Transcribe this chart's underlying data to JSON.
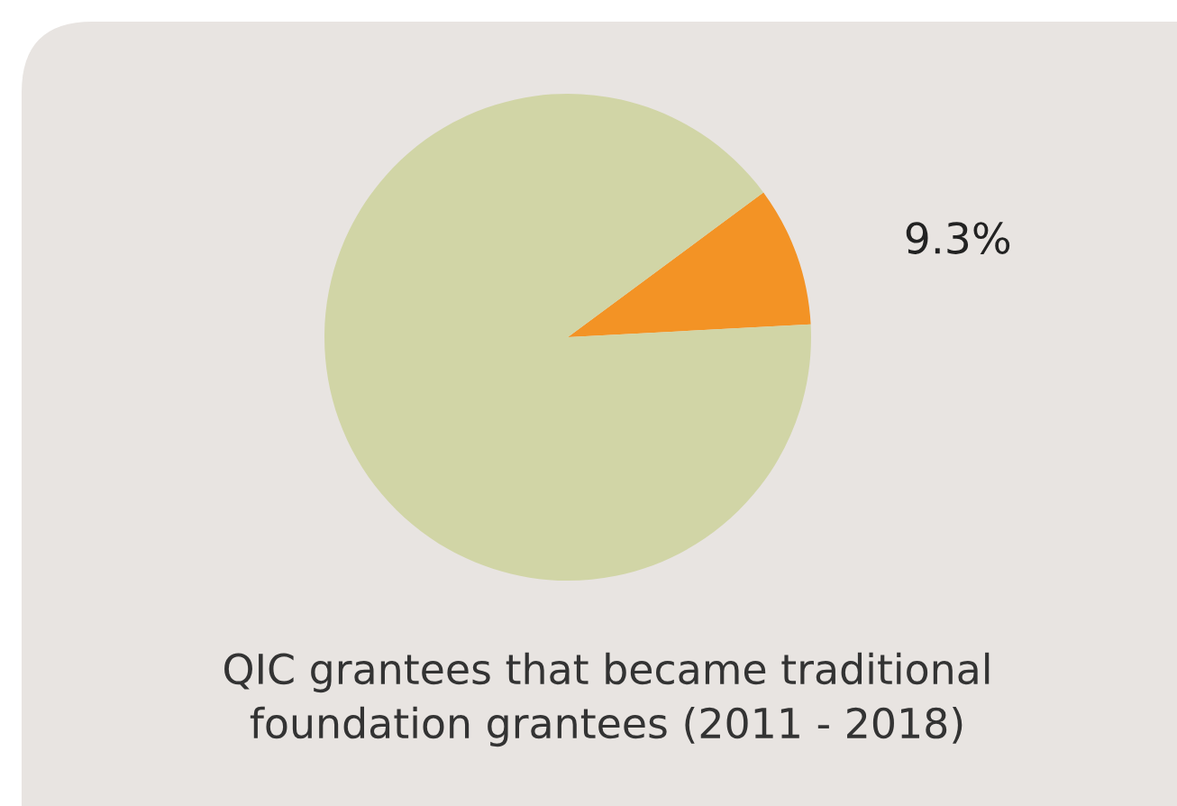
{
  "chart_data": {
    "type": "pie",
    "categories": [
      null,
      null
    ],
    "values": [
      9.3,
      90.7
    ],
    "colors": [
      "#f39325",
      "#d1d5a6"
    ],
    "value_labels": [
      "9.3%",
      null
    ],
    "annotations": [
      "QIC grantees that became traditional\nfoundation grantees (2011 - 2018)"
    ],
    "legend": false
  }
}
